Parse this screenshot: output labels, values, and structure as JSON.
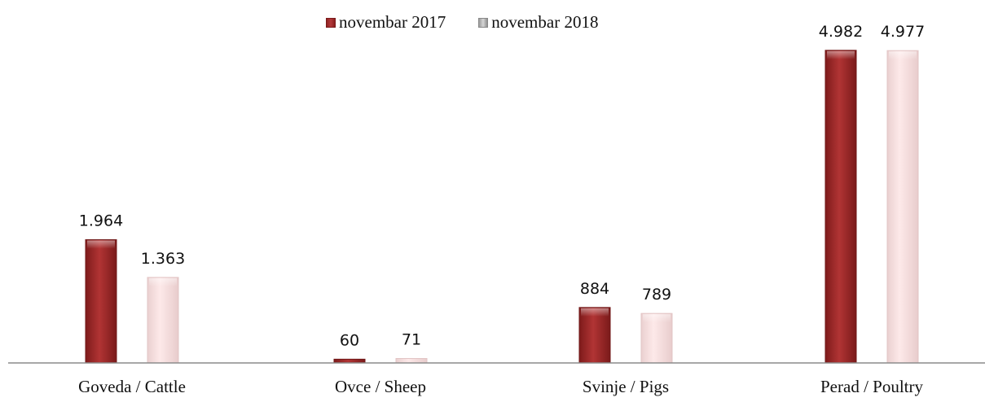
{
  "chart_data": {
    "type": "bar",
    "categories": [
      "Goveda / Cattle",
      "Ovce / Sheep",
      "Svinje / Pigs",
      "Perad / Poultry"
    ],
    "series": [
      {
        "name": "novembar 2017",
        "values": [
          1964,
          60,
          884,
          4982
        ],
        "labels": [
          "1.964",
          "60",
          "884",
          "4.982"
        ],
        "color": "#a42f2f"
      },
      {
        "name": "novembar 2018",
        "values": [
          1363,
          71,
          789,
          4977
        ],
        "labels": [
          "1.363",
          "71",
          "789",
          "4.977"
        ],
        "color": "#f7dede"
      }
    ],
    "title": "",
    "xlabel": "",
    "ylabel": "",
    "ylim": [
      0,
      5200
    ],
    "grid": false,
    "legend_position": "top-center"
  }
}
